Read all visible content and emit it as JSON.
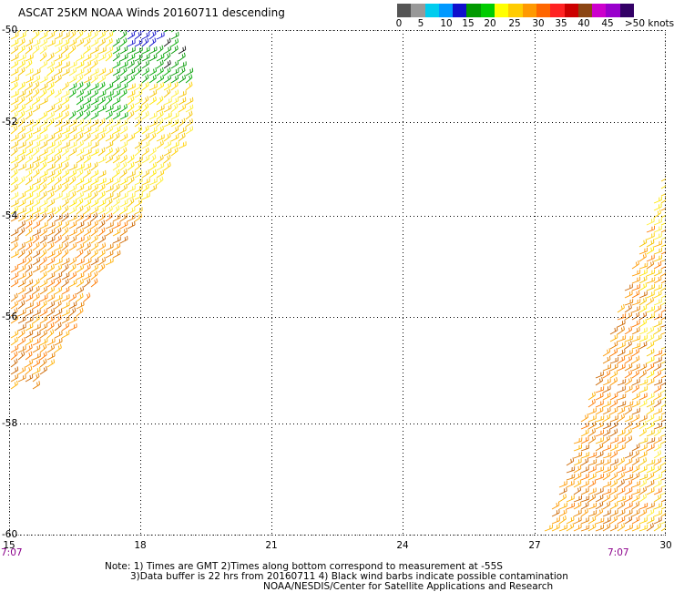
{
  "header": {
    "title": "ASCAT 25KM NOAA Winds 20160711 descending"
  },
  "legend": {
    "colors": [
      "#555555",
      "#999999",
      "#00ccee",
      "#0099ff",
      "#1010cc",
      "#009900",
      "#00cc00",
      "#ffff00",
      "#ffcc00",
      "#ff9900",
      "#ff6600",
      "#ff2222",
      "#cc0000",
      "#8b4513",
      "#cc00cc",
      "#9900cc",
      "#330066"
    ],
    "labels": [
      "0",
      "5",
      "10",
      "15",
      "20",
      "25",
      "30",
      "35",
      "40",
      "45",
      ">50 knots"
    ]
  },
  "map": {
    "lat_labels": [
      "-50",
      "-52",
      "-54",
      "-56",
      "-58",
      "-60"
    ],
    "lon_labels": [
      "15",
      "18",
      "21",
      "24",
      "27",
      "30"
    ],
    "time_left": "7:07",
    "time_right": "7:07",
    "line_color": "#000000"
  },
  "notes": {
    "line1": "Note: 1) Times are GMT 2)Times along bottom correspond to measurement at -55S",
    "line2": "3)Data buffer is 22 hrs from 20160711 4) Black wind barbs indicate possible contamination",
    "line3": "NOAA/NESDIS/Center for Satellite Applications and Research"
  }
}
